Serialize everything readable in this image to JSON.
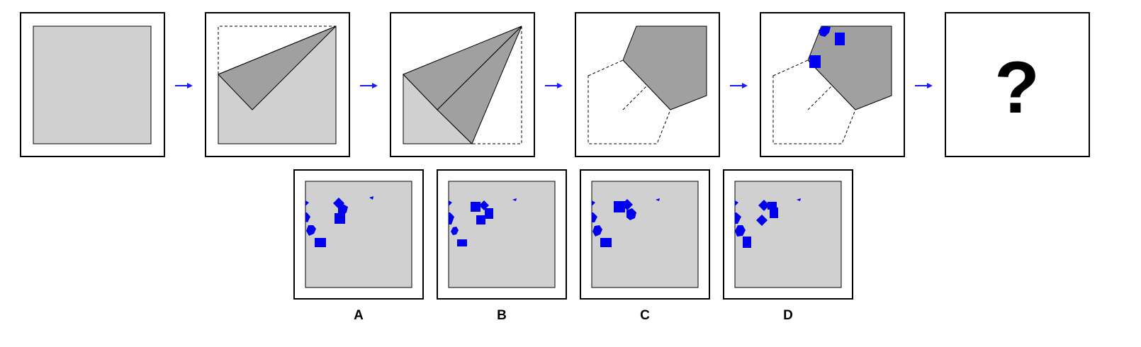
{
  "puzzle": {
    "question_mark": "?",
    "steps": [
      {
        "name": "step-1-unfolded-square"
      },
      {
        "name": "step-2-first-fold"
      },
      {
        "name": "step-3-second-fold"
      },
      {
        "name": "step-4-third-fold"
      },
      {
        "name": "step-5-punched-holes"
      },
      {
        "name": "step-6-unknown-result"
      }
    ]
  },
  "options": [
    {
      "label": "A"
    },
    {
      "label": "B"
    },
    {
      "label": "C"
    },
    {
      "label": "D"
    }
  ],
  "colors": {
    "paper": "#d0d0d0",
    "folded": "#a0a0a0",
    "hole": "#0000ee",
    "arrow": "#1a1aff",
    "frame": "#000000",
    "background": "#ffffff"
  }
}
